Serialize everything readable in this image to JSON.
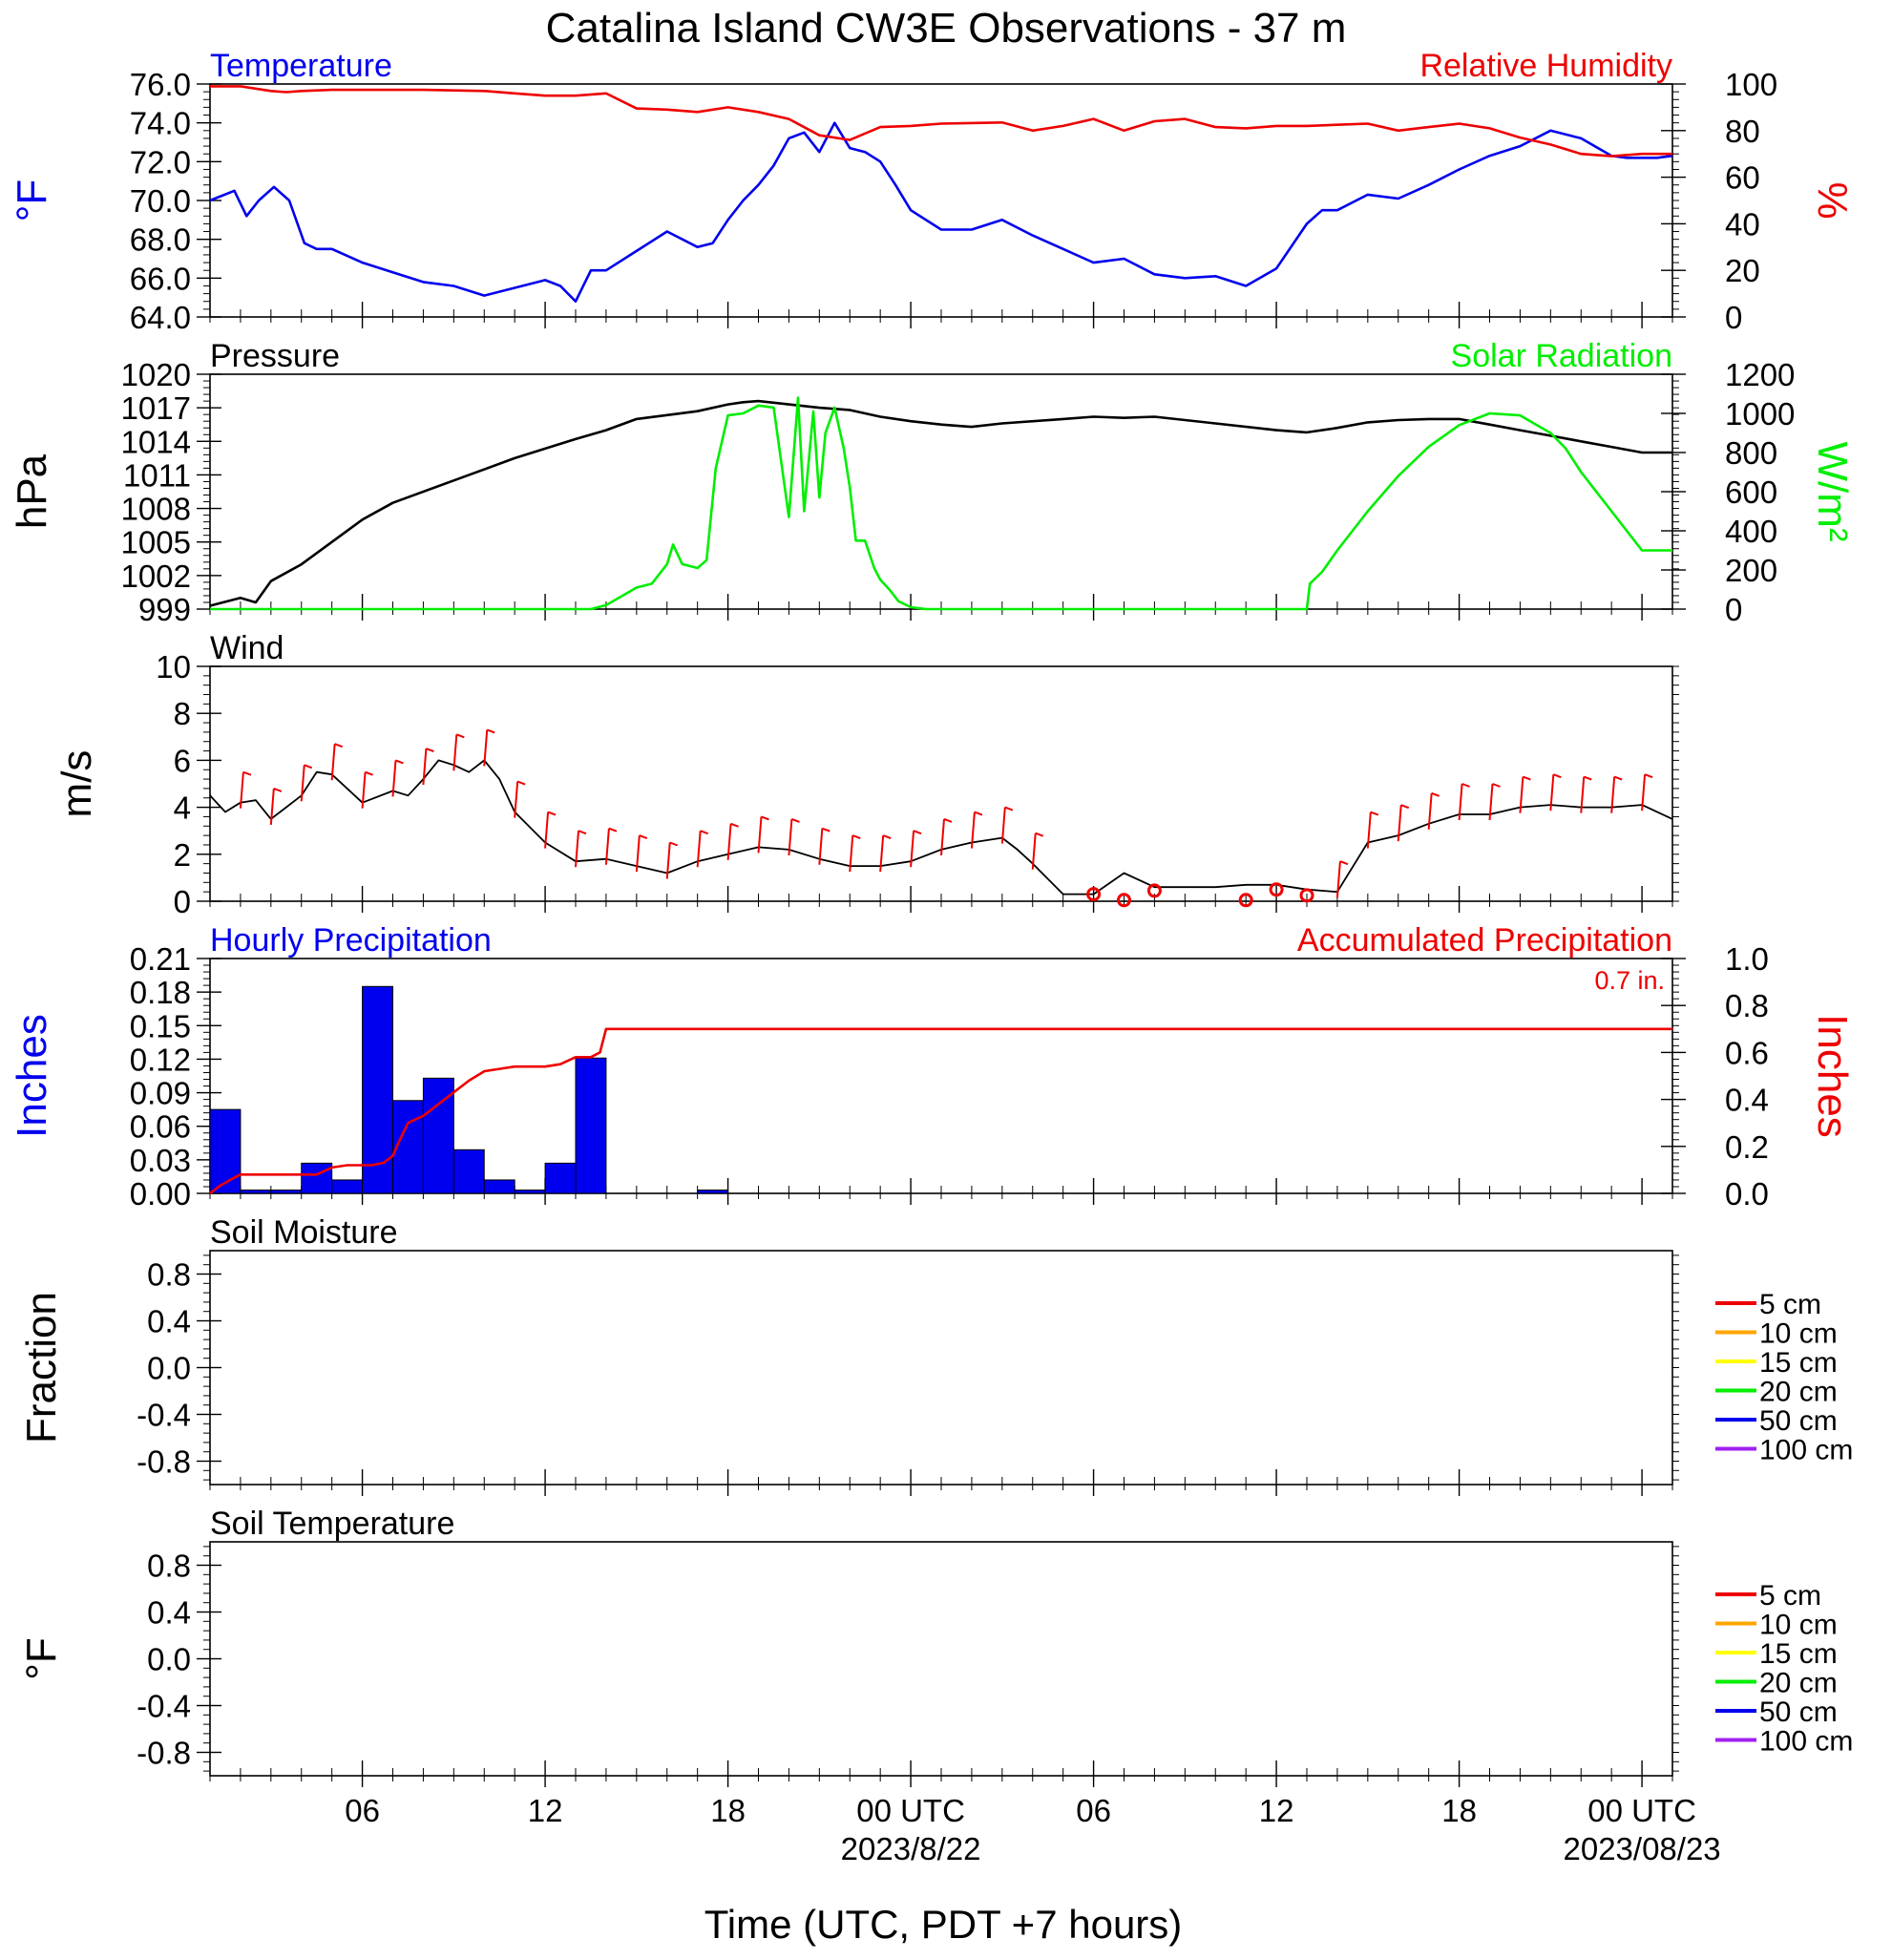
{
  "title": "Catalina Island CW3E Observations - 37 m",
  "xaxis": {
    "label": "Time (UTC, PDT +7 hours)",
    "ticks": [
      {
        "h": 5,
        "label": "06",
        "date": ""
      },
      {
        "h": 11,
        "label": "12",
        "date": ""
      },
      {
        "h": 17,
        "label": "18",
        "date": ""
      },
      {
        "h": 23,
        "label": "00 UTC",
        "date": "2023/8/22"
      },
      {
        "h": 29,
        "label": "06",
        "date": ""
      },
      {
        "h": 35,
        "label": "12",
        "date": ""
      },
      {
        "h": 41,
        "label": "18",
        "date": ""
      },
      {
        "h": 47,
        "label": "00 UTC",
        "date": "2023/08/23"
      }
    ],
    "range_hours": [
      0,
      48
    ]
  },
  "colors": {
    "blue": "#0000ee",
    "red": "#ee0000",
    "green": "#00ee00",
    "black": "#000000"
  },
  "chart_data": [
    {
      "type": "line",
      "panel": "temperature-humidity",
      "left_title": "Temperature",
      "right_title": "Relative Humidity",
      "ylabel_left": "°F",
      "ylabel_right": "%",
      "ylim_left": [
        64,
        76
      ],
      "yticks_left": [
        "76.0",
        "74.0",
        "72.0",
        "70.0",
        "68.0",
        "66.0",
        "64.0"
      ],
      "ylim_right": [
        0,
        100
      ],
      "yticks_right": [
        "100",
        "80",
        "60",
        "40",
        "20",
        "0"
      ],
      "series": [
        {
          "name": "Temperature",
          "axis": "left",
          "color": "#0000ee",
          "x": [
            0,
            0.8,
            1.2,
            1.6,
            2.1,
            2.6,
            3.1,
            3.5,
            4,
            5,
            6,
            7,
            8,
            9,
            10,
            11,
            11.5,
            12,
            12.5,
            13,
            14,
            15,
            16,
            16.5,
            17,
            17.5,
            18,
            18.5,
            19,
            19.5,
            20,
            20.5,
            21,
            21.5,
            22,
            22.5,
            23,
            24,
            25,
            26,
            27,
            28,
            29,
            30,
            31,
            32,
            33,
            34,
            35,
            36,
            36.5,
            37,
            38,
            39,
            40,
            41,
            42,
            43,
            44,
            45,
            46,
            46.5,
            47,
            47.5,
            48
          ],
          "y": [
            70,
            70.5,
            69.2,
            70,
            70.7,
            70,
            67.8,
            67.5,
            67.5,
            66.8,
            66.3,
            65.8,
            65.6,
            65.1,
            65.5,
            65.9,
            65.6,
            64.8,
            66.4,
            66.4,
            67.4,
            68.4,
            67.6,
            67.8,
            69,
            70,
            70.8,
            71.8,
            73.2,
            73.5,
            72.5,
            74,
            72.7,
            72.5,
            72,
            70.8,
            69.5,
            68.5,
            68.5,
            69,
            68.2,
            67.5,
            66.8,
            67,
            66.2,
            66,
            66.1,
            65.6,
            66.5,
            68.8,
            69.5,
            69.5,
            70.3,
            70.1,
            70.8,
            71.6,
            72.3,
            72.8,
            73.6,
            73.2,
            72.3,
            72.2,
            72.2,
            72.2,
            72.3
          ]
        },
        {
          "name": "Relative Humidity",
          "axis": "right",
          "color": "#ee0000",
          "x": [
            0,
            1,
            2,
            2.5,
            3,
            4,
            5,
            7,
            9,
            10,
            11,
            12,
            13,
            14,
            15,
            16,
            17,
            18,
            19,
            20,
            21,
            22,
            23,
            24,
            26,
            27,
            28,
            29,
            30,
            31,
            32,
            33,
            34,
            35,
            36,
            37,
            38,
            39,
            40,
            41,
            42,
            43,
            44,
            45,
            46,
            47,
            48
          ],
          "y": [
            99,
            99,
            97,
            96.5,
            97,
            97.5,
            97.5,
            97.5,
            97,
            96,
            95,
            95,
            96,
            89.5,
            89,
            88,
            90,
            88,
            85,
            78,
            76,
            81.5,
            82,
            83,
            83.5,
            80,
            82,
            85,
            80,
            84,
            85,
            81.5,
            81,
            82,
            82,
            82.5,
            83,
            80,
            81.5,
            83,
            81,
            77,
            74,
            70,
            69,
            70,
            70
          ]
        }
      ]
    },
    {
      "type": "line",
      "panel": "pressure-solar",
      "left_title": "Pressure",
      "right_title": "Solar Radiation",
      "ylabel_left": "hPa",
      "ylabel_right": "W/m²",
      "ylim_left": [
        999,
        1020
      ],
      "yticks_left": [
        "1020",
        "1017",
        "1014",
        "1011",
        "1008",
        "1005",
        "1002",
        "999"
      ],
      "ylim_right": [
        0,
        1200
      ],
      "yticks_right": [
        "1200",
        "1000",
        "800",
        "600",
        "400",
        "200",
        "0"
      ],
      "series": [
        {
          "name": "Pressure",
          "axis": "left",
          "color": "#000000",
          "x": [
            0,
            1,
            1.5,
            2,
            3,
            4,
            5,
            6,
            8,
            10,
            12,
            13,
            14,
            16,
            17,
            17.5,
            18,
            19,
            20,
            21,
            22,
            23,
            24,
            25,
            26,
            28,
            29,
            30,
            31,
            33,
            35,
            36,
            37,
            38,
            39,
            40,
            41,
            42,
            43,
            44,
            45,
            46,
            47,
            48
          ],
          "y": [
            999.3,
            1000,
            999.6,
            1001.5,
            1003,
            1005,
            1007,
            1008.5,
            1010.5,
            1012.5,
            1014.2,
            1015,
            1016,
            1016.7,
            1017.3,
            1017.5,
            1017.6,
            1017.3,
            1017,
            1016.8,
            1016.2,
            1015.8,
            1015.5,
            1015.3,
            1015.6,
            1016,
            1016.2,
            1016.1,
            1016.2,
            1015.6,
            1015,
            1014.8,
            1015.2,
            1015.7,
            1015.9,
            1016,
            1016,
            1015.5,
            1015,
            1014.5,
            1014,
            1013.5,
            1013,
            1013
          ]
        },
        {
          "name": "Solar Radiation",
          "axis": "right",
          "color": "#00ee00",
          "x": [
            0,
            12.5,
            13,
            14,
            14.5,
            15,
            15.2,
            15.5,
            16,
            16.3,
            16.6,
            17,
            17.5,
            18,
            18.5,
            19,
            19.3,
            19.5,
            19.8,
            20,
            20.2,
            20.5,
            20.8,
            21,
            21.2,
            21.5,
            21.8,
            22,
            22.3,
            22.6,
            23,
            23.5,
            24,
            25,
            26,
            27,
            28,
            29,
            30,
            31,
            32,
            33,
            34,
            35,
            36,
            36.1,
            36.5,
            37,
            38,
            39,
            40,
            41,
            42,
            43,
            44,
            44.5,
            45,
            46,
            47,
            48
          ],
          "y": [
            0,
            0,
            20,
            110,
            130,
            230,
            330,
            230,
            210,
            250,
            720,
            990,
            1000,
            1040,
            1030,
            470,
            1080,
            500,
            1010,
            570,
            900,
            1030,
            820,
            620,
            350,
            350,
            210,
            150,
            100,
            40,
            10,
            0,
            0,
            0,
            0,
            0,
            0,
            0,
            0,
            0,
            0,
            0,
            0,
            0,
            0,
            130,
            190,
            300,
            500,
            680,
            830,
            940,
            1000,
            990,
            900,
            820,
            700,
            500,
            300,
            300
          ]
        }
      ]
    },
    {
      "type": "line",
      "panel": "wind",
      "left_title": "Wind",
      "ylabel_left": "m/s",
      "ylim_left": [
        0,
        10
      ],
      "yticks_left": [
        "10",
        "8",
        "6",
        "4",
        "2",
        "0"
      ],
      "series": [
        {
          "name": "",
          "axis": "left",
          "color": "#000000",
          "x": [
            0,
            0.5,
            1,
            1.5,
            2,
            2.5,
            3,
            3.5,
            4,
            5,
            6,
            6.5,
            7,
            7.5,
            8,
            8.5,
            9,
            9.5,
            10,
            11,
            12,
            13,
            14,
            15,
            16,
            17,
            18,
            19,
            20,
            21,
            22,
            23,
            24,
            25,
            26,
            26.5,
            27,
            28,
            29,
            30,
            31,
            32,
            33,
            34,
            35,
            36,
            37,
            38,
            39,
            40,
            41,
            42,
            43,
            44,
            45,
            46,
            47,
            48
          ],
          "y": [
            4.5,
            3.8,
            4.2,
            4.3,
            3.5,
            4,
            4.5,
            5.5,
            5.4,
            4.2,
            4.7,
            4.5,
            5.2,
            6,
            5.8,
            5.5,
            6,
            5.2,
            3.8,
            2.5,
            1.7,
            1.8,
            1.5,
            1.2,
            1.7,
            2,
            2.3,
            2.2,
            1.8,
            1.5,
            1.5,
            1.7,
            2.2,
            2.5,
            2.7,
            2.2,
            1.6,
            0.3,
            0.3,
            1.2,
            0.6,
            0.6,
            0.6,
            0.7,
            0.7,
            0.5,
            0.4,
            2.5,
            2.8,
            3.3,
            3.7,
            3.7,
            4,
            4.1,
            4,
            4,
            4.1,
            3.5
          ]
        }
      ],
      "calm_marks_hours": [
        29,
        30,
        31,
        34,
        35,
        36
      ]
    },
    {
      "type": "bar",
      "panel": "precipitation",
      "left_title": "Hourly Precipitation",
      "right_title": "Accumulated Precipitation",
      "annotation": "0.7 in.",
      "ylabel_left": "Inches",
      "ylabel_right": "Inches",
      "ylim_left": [
        0,
        0.21
      ],
      "yticks_left": [
        "0.21",
        "0.18",
        "0.15",
        "0.12",
        "0.09",
        "0.06",
        "0.03",
        "0.00"
      ],
      "ylim_right": [
        0,
        1.0
      ],
      "yticks_right": [
        "1.0",
        "0.8",
        "0.6",
        "0.4",
        "0.2",
        "0.0"
      ],
      "hourly": [
        0.075,
        0.003,
        0.003,
        0.027,
        0.012,
        0.185,
        0.083,
        0.103,
        0.039,
        0.012,
        0.003,
        0.027,
        0.121,
        0,
        0,
        0,
        0.003
      ],
      "accumulated": {
        "x": [
          0,
          0.3,
          0.7,
          1,
          2,
          3,
          3.5,
          4,
          4.5,
          5,
          5.3,
          5.7,
          6,
          6.2,
          6.5,
          7,
          7.5,
          8,
          8.5,
          9,
          9.5,
          10,
          10.5,
          11,
          11.5,
          12,
          12.5,
          12.8,
          13,
          48
        ],
        "y": [
          0,
          0.03,
          0.06,
          0.08,
          0.08,
          0.08,
          0.08,
          0.11,
          0.12,
          0.12,
          0.12,
          0.13,
          0.16,
          0.22,
          0.3,
          0.33,
          0.38,
          0.43,
          0.48,
          0.52,
          0.53,
          0.54,
          0.54,
          0.54,
          0.55,
          0.58,
          0.58,
          0.6,
          0.7,
          0.7
        ]
      }
    },
    {
      "type": "line",
      "panel": "soil-moisture",
      "left_title": "Soil Moisture",
      "ylabel_left": "Fraction",
      "ylim_left": [
        -1,
        1
      ],
      "yticks_left": [
        "0.8",
        "0.4",
        "0.0",
        "-0.4",
        "-0.8"
      ],
      "legend": [
        {
          "name": "5 cm",
          "color": "#ee0000"
        },
        {
          "name": "10 cm",
          "color": "#ffa500"
        },
        {
          "name": "15 cm",
          "color": "#ffff00"
        },
        {
          "name": "20 cm",
          "color": "#00ee00"
        },
        {
          "name": "50 cm",
          "color": "#0000ee"
        },
        {
          "name": "100 cm",
          "color": "#a020f0"
        }
      ]
    },
    {
      "type": "line",
      "panel": "soil-temperature",
      "left_title": "Soil Temperature",
      "ylabel_left": "°F",
      "ylim_left": [
        -1,
        1
      ],
      "yticks_left": [
        "0.8",
        "0.4",
        "0.0",
        "-0.4",
        "-0.8"
      ],
      "legend": [
        {
          "name": "5 cm",
          "color": "#ee0000"
        },
        {
          "name": "10 cm",
          "color": "#ffa500"
        },
        {
          "name": "15 cm",
          "color": "#ffff00"
        },
        {
          "name": "20 cm",
          "color": "#00ee00"
        },
        {
          "name": "50 cm",
          "color": "#0000ee"
        },
        {
          "name": "100 cm",
          "color": "#a020f0"
        }
      ]
    }
  ]
}
